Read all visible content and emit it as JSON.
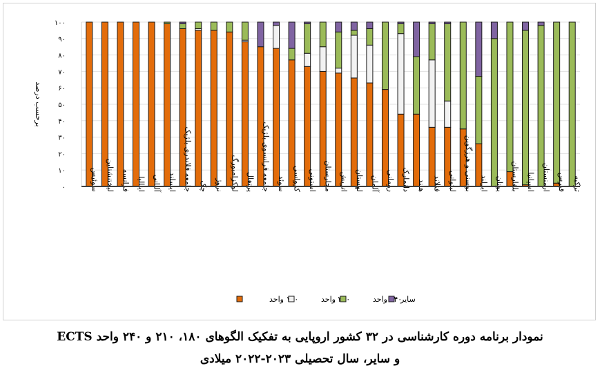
{
  "chart_data": {
    "type": "bar",
    "stacked": true,
    "ylabel": "برحسب درصد",
    "ylim": [
      0,
      100
    ],
    "yticks": [
      "۰",
      "۱۰",
      "۲۰",
      "۳۰",
      "۴۰",
      "۵۰",
      "۶۰",
      "۷۰",
      "۸۰",
      "۹۰",
      "۱۰۰"
    ],
    "grid": true,
    "legend_position": "bottom",
    "categories": [
      "سوئیس",
      "لیختنشتاین",
      "فرانسه",
      "ایتالیا",
      "آلبانی",
      "ایسلند",
      "جامعه فلاندری بلژیک",
      "چک",
      "نروژ",
      "لوکزامبورگ",
      "پرتغال",
      "جامعه فرانسوی بلژیک",
      "سوئد",
      "کرواسی",
      "استونی",
      "مجارستان",
      "اتریش",
      "لهستان",
      "آلمان",
      "رومانی",
      "دانمارک",
      "هلند",
      "فنلاند",
      "لیتوانی",
      "بوسنی و هرزگوین",
      "ایرلند",
      "یونان",
      "بلغارستان",
      "اسپانیا",
      "ارمنستان",
      "قبرس",
      "ترکیه"
    ],
    "series": [
      {
        "name": "۱۸۰ واحد",
        "color": "#e36c0a",
        "values": [
          100,
          100,
          100,
          100,
          100,
          99,
          96,
          95,
          95,
          94,
          88,
          85,
          84,
          77,
          73,
          70,
          69,
          66,
          63,
          59,
          44,
          44,
          36,
          36,
          35,
          26,
          0,
          9,
          1,
          0,
          2,
          0
        ]
      },
      {
        "name": "۲۱۰ واحد",
        "color": "#f2f2f2",
        "values": [
          0,
          0,
          0,
          0,
          0,
          0,
          0,
          1,
          0,
          0,
          1,
          0,
          14,
          0,
          8,
          15,
          3,
          26,
          23,
          0,
          49,
          0,
          41,
          16,
          0,
          0,
          0,
          0,
          0,
          0,
          0,
          0
        ]
      },
      {
        "name": "۲۴۰ واحد",
        "color": "#9bbb59",
        "values": [
          0,
          0,
          0,
          0,
          0,
          1,
          3,
          4,
          5,
          6,
          11,
          0,
          0,
          7,
          18,
          15,
          22,
          3,
          10,
          41,
          6,
          35,
          22,
          47,
          65,
          41,
          90,
          91,
          94,
          98,
          98,
          100
        ]
      },
      {
        "name": "سایر",
        "color": "#8064a2",
        "values": [
          0,
          0,
          0,
          0,
          0,
          0,
          1,
          0,
          0,
          0,
          0,
          15,
          2,
          16,
          1,
          0,
          6,
          5,
          4,
          0,
          1,
          21,
          1,
          1,
          0,
          33,
          10,
          0,
          5,
          2,
          0,
          0
        ]
      }
    ]
  },
  "caption": {
    "line1": "نمودار برنامه دوره کارشناسی در ۳۲ کشور اروپایی به تفکیک الگوهای ۱۸۰، ۲۱۰ و ۲۴۰ واحد ECTS",
    "line2": "و سایر، سال تحصیلی ۲۰۲۳-۲۰۲۲ میلادی"
  }
}
